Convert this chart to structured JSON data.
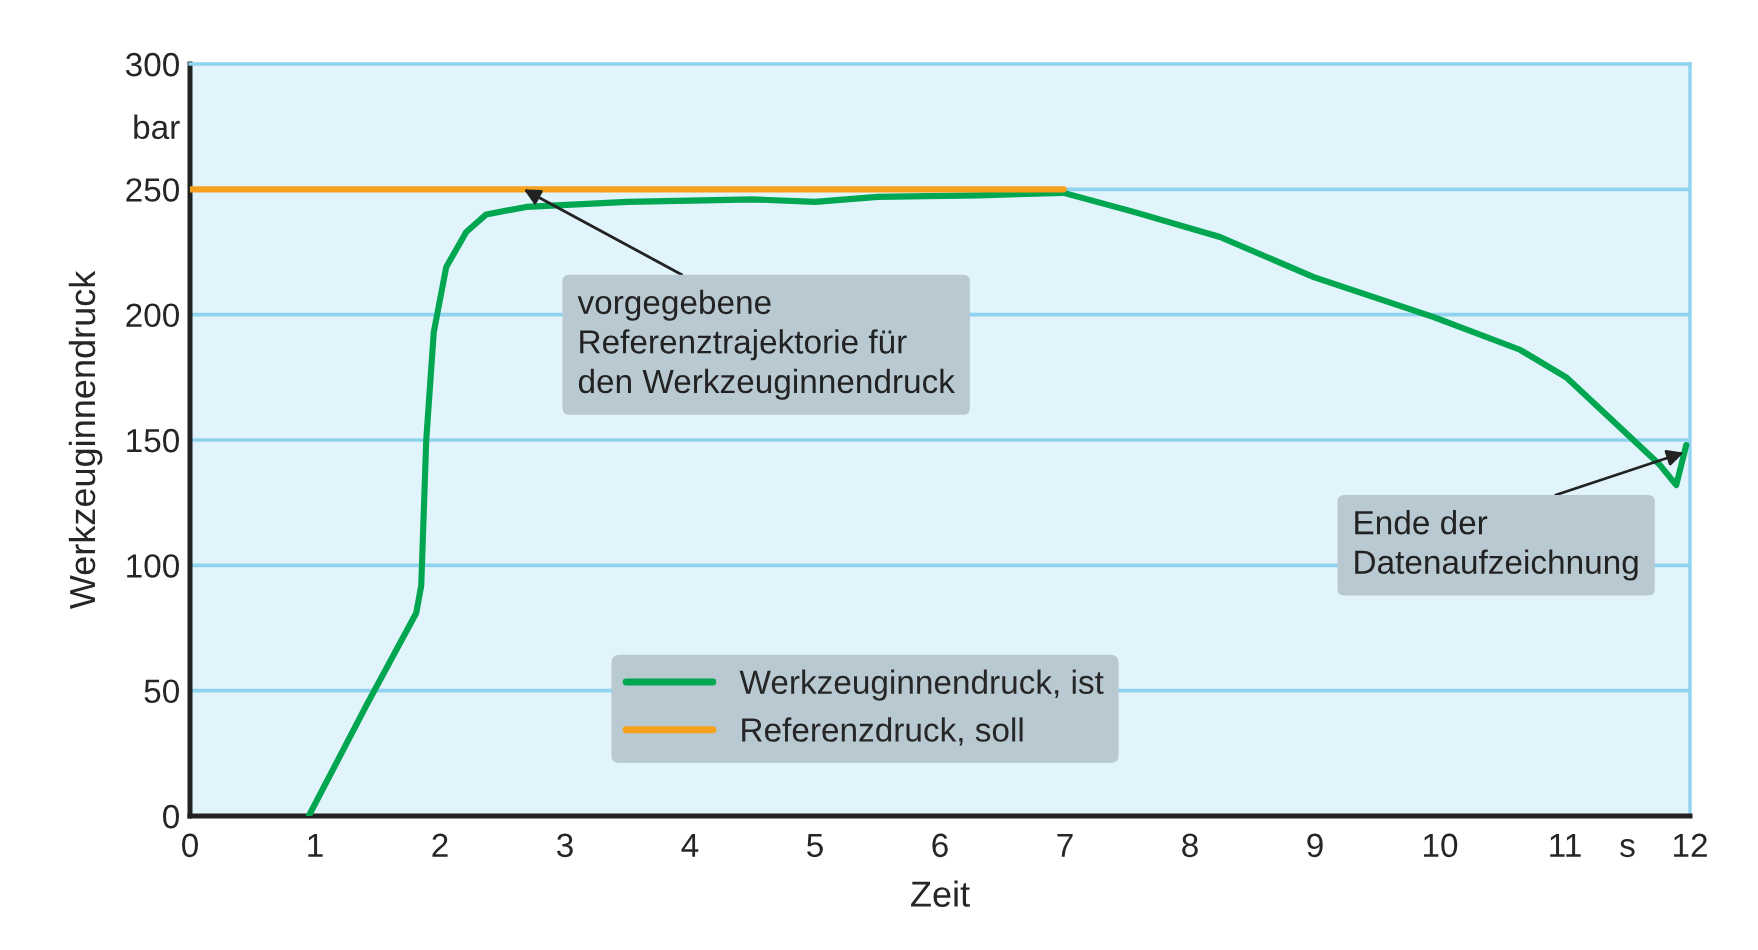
{
  "chart_data": {
    "type": "line",
    "xlabel": "Zeit",
    "ylabel": "Werkzeuginnendruck",
    "xlim": [
      0,
      12
    ],
    "ylim": [
      0,
      300
    ],
    "xticks": [
      0,
      1,
      2,
      3,
      4,
      5,
      6,
      7,
      8,
      9,
      10,
      11,
      {
        "value": 11.5,
        "label": "s"
      },
      12
    ],
    "yticks": [
      0,
      50,
      100,
      150,
      200,
      250,
      {
        "value": 275,
        "label": "bar"
      },
      300
    ],
    "grid": "y",
    "legend": "bottom",
    "marker": "none",
    "line_style": "solid",
    "series": [
      {
        "name": "Werkzeuginnendruck, ist",
        "color": "#00a650",
        "x": [
          0.95,
          1.41,
          1.81,
          1.85,
          1.89,
          1.95,
          2.05,
          2.21,
          2.37,
          2.69,
          3.5,
          4.5,
          5.0,
          5.5,
          6.3,
          6.99,
          7.55,
          8.24,
          8.99,
          9.95,
          10.64,
          11.01,
          11.44,
          11.76,
          11.89,
          11.97
        ],
        "values": [
          0,
          44,
          81,
          92,
          150,
          193,
          219,
          233,
          240,
          243,
          245,
          246,
          245,
          247,
          247.6,
          248.6,
          241,
          231,
          215,
          199,
          186,
          175,
          155,
          140,
          132,
          148
        ]
      },
      {
        "name": "Referenzdruck, soll",
        "color": "#f5a11c",
        "x": [
          0,
          6.99
        ],
        "values": [
          250,
          250
        ]
      }
    ],
    "annotations": [
      {
        "text": "vorgegebene\nReferenztrajektorie für\nden Werkzeuginnendruck",
        "x": 2.67,
        "y": 250
      },
      {
        "text": "Ende der\nDatenaufzeichnung",
        "x": 11.95,
        "y": 145
      }
    ]
  }
}
